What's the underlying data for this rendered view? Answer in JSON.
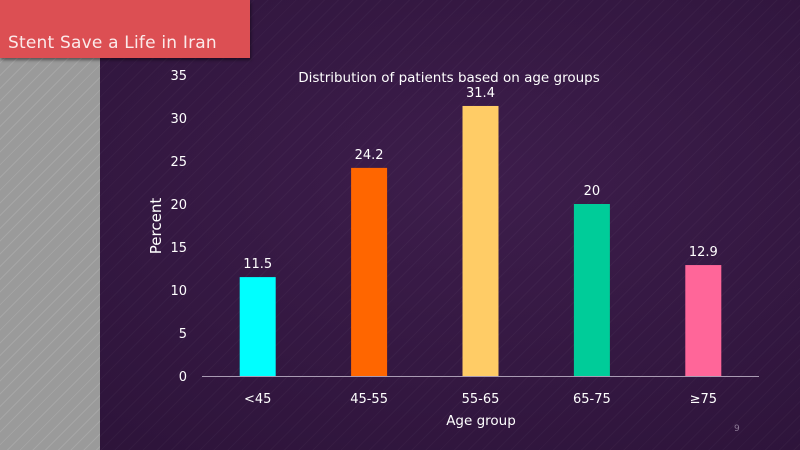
{
  "slide": {
    "title": "Stent Save a Life in Iran",
    "page_number": "9",
    "colors": {
      "title_bar": "#dc4f53",
      "background": "#381a46",
      "side_panel": "#9a9a9a",
      "text": "#ffffff"
    }
  },
  "chart_data": {
    "type": "bar",
    "title": "Distribution of patients based on age groups",
    "xlabel": "Age group",
    "ylabel": "Percent",
    "categories": [
      "<45",
      "45-55",
      "55-65",
      "65-75",
      "≥75"
    ],
    "values": [
      11.5,
      24.2,
      31.4,
      20,
      12.9
    ],
    "data_labels": [
      "11.5",
      "24.2",
      "31.4",
      "20",
      "12.9"
    ],
    "bar_colors": [
      "#00ffff",
      "#ff6600",
      "#ffcc66",
      "#00cc99",
      "#ff6699"
    ],
    "ylim": [
      0,
      35
    ],
    "yticks": [
      0,
      5,
      10,
      15,
      20,
      25,
      30,
      35
    ],
    "grid": false,
    "legend": "none"
  }
}
